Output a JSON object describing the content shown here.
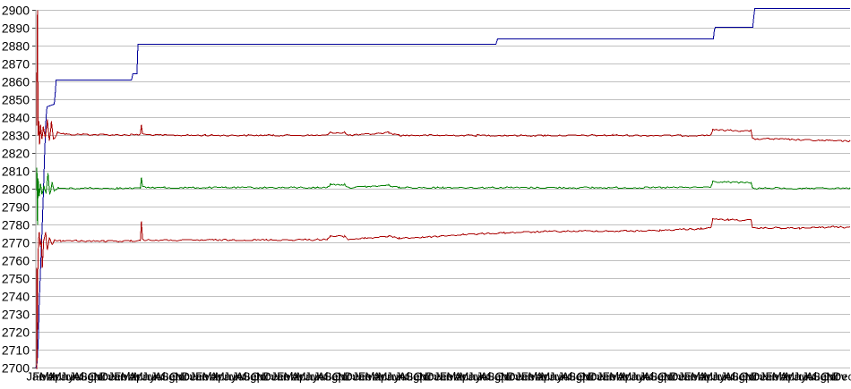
{
  "chart_data": {
    "type": "line",
    "title": "",
    "legend": "none",
    "grid": true,
    "x_axis": {
      "labels_cycle": [
        "Jan",
        "Feb",
        "Mar",
        "Apr",
        "May",
        "Jun",
        "Jul",
        "Aug",
        "Sep",
        "Oct",
        "Nov",
        "Dec"
      ],
      "repeat": 10,
      "count": 120
    },
    "y_axis": {
      "min": 2700,
      "max": 2900,
      "tick_step": 10,
      "tick_labels": [
        "2700",
        "2710",
        "2720",
        "2730",
        "2740",
        "2750",
        "2760",
        "2770",
        "2780",
        "2790",
        "2800",
        "2810",
        "2820",
        "2830",
        "2840",
        "2850",
        "2860",
        "2870",
        "2880",
        "2890",
        "2900"
      ]
    },
    "colors": {
      "grid": "#C0C0C0",
      "axis": "#AAAAAA",
      "tick": "#404040",
      "text": "#000000",
      "background": "#FFFFFF",
      "blue": "#000099",
      "red": "#AA0000",
      "green": "#008000"
    },
    "series": [
      {
        "name": "blue_step",
        "color": "#000099",
        "noise": 0,
        "points": [
          [
            0,
            2700
          ],
          [
            0.2,
            2703
          ],
          [
            0.35,
            2715
          ],
          [
            0.5,
            2736
          ],
          [
            0.7,
            2756
          ],
          [
            0.9,
            2775
          ],
          [
            1.1,
            2796
          ],
          [
            1.3,
            2820
          ],
          [
            1.5,
            2840
          ],
          [
            1.65,
            2846
          ],
          [
            2.7,
            2847.5
          ],
          [
            2.85,
            2853
          ],
          [
            3.0,
            2861
          ],
          [
            14.1,
            2861
          ],
          [
            14.3,
            2864.5
          ],
          [
            14.9,
            2864.5
          ],
          [
            15.05,
            2881
          ],
          [
            67.8,
            2881
          ],
          [
            68.05,
            2884
          ],
          [
            99.85,
            2884
          ],
          [
            100.0,
            2889
          ],
          [
            100.15,
            2890.5
          ],
          [
            105.65,
            2890.5
          ],
          [
            105.8,
            2896
          ],
          [
            105.95,
            2901
          ],
          [
            120,
            2901
          ]
        ]
      },
      {
        "name": "red_upper",
        "color": "#AA0000",
        "noise": 0.9,
        "points": [
          [
            0.12,
            2836
          ],
          [
            0.18,
            2877
          ],
          [
            0.24,
            2900
          ],
          [
            0.3,
            2856
          ],
          [
            0.36,
            2830
          ],
          [
            0.45,
            2838
          ],
          [
            0.55,
            2825
          ],
          [
            0.7,
            2836
          ],
          [
            0.9,
            2828
          ],
          [
            1.1,
            2835
          ],
          [
            1.4,
            2829
          ],
          [
            1.7,
            2839
          ],
          [
            2.0,
            2827
          ],
          [
            2.3,
            2838
          ],
          [
            2.6,
            2828
          ],
          [
            3.2,
            2832
          ],
          [
            4.5,
            2831
          ],
          [
            7,
            2831
          ],
          [
            10,
            2830.8
          ],
          [
            14,
            2830.8
          ],
          [
            15.4,
            2830.8
          ],
          [
            15.55,
            2836
          ],
          [
            15.75,
            2831
          ],
          [
            18,
            2830.6
          ],
          [
            25,
            2830.5
          ],
          [
            35,
            2830.5
          ],
          [
            43,
            2830.5
          ],
          [
            43.4,
            2832
          ],
          [
            45.5,
            2832
          ],
          [
            45.9,
            2830.5
          ],
          [
            48.5,
            2831
          ],
          [
            52,
            2832
          ],
          [
            53.5,
            2830.5
          ],
          [
            58,
            2830.5
          ],
          [
            65,
            2830.5
          ],
          [
            75,
            2830.4
          ],
          [
            85,
            2830.5
          ],
          [
            95,
            2830.4
          ],
          [
            99.5,
            2830.6
          ],
          [
            99.75,
            2833.5
          ],
          [
            102,
            2833.3
          ],
          [
            105.4,
            2833
          ],
          [
            105.6,
            2828.5
          ],
          [
            108,
            2828.5
          ],
          [
            111,
            2828.2
          ],
          [
            114,
            2827.8
          ],
          [
            117,
            2827.5
          ],
          [
            120,
            2827.3
          ]
        ]
      },
      {
        "name": "green_mid",
        "color": "#008000",
        "noise": 0.9,
        "points": [
          [
            0.1,
            2800
          ],
          [
            0.16,
            2812
          ],
          [
            0.24,
            2780
          ],
          [
            0.34,
            2806
          ],
          [
            0.5,
            2796
          ],
          [
            0.7,
            2803
          ],
          [
            0.9,
            2797
          ],
          [
            1.2,
            2802
          ],
          [
            1.5,
            2798
          ],
          [
            1.8,
            2809
          ],
          [
            2.05,
            2797
          ],
          [
            2.4,
            2804
          ],
          [
            2.7,
            2799
          ],
          [
            3.3,
            2801
          ],
          [
            5,
            2800.8
          ],
          [
            8,
            2801
          ],
          [
            12,
            2800.9
          ],
          [
            15.4,
            2800.9
          ],
          [
            15.55,
            2806.5
          ],
          [
            15.75,
            2801.5
          ],
          [
            19,
            2801.2
          ],
          [
            28,
            2801.3
          ],
          [
            38,
            2801.3
          ],
          [
            43,
            2801.3
          ],
          [
            43.4,
            2803
          ],
          [
            45.5,
            2803
          ],
          [
            45.9,
            2801.3
          ],
          [
            48.5,
            2801.8
          ],
          [
            52,
            2802.5
          ],
          [
            53.5,
            2801.3
          ],
          [
            60,
            2801.3
          ],
          [
            70,
            2801.3
          ],
          [
            82,
            2801.2
          ],
          [
            92,
            2801.3
          ],
          [
            99.5,
            2801.5
          ],
          [
            99.75,
            2804.5
          ],
          [
            102,
            2804.3
          ],
          [
            105.4,
            2804
          ],
          [
            105.6,
            2800.8
          ],
          [
            109,
            2801
          ],
          [
            113,
            2800.6
          ],
          [
            116,
            2800.9
          ],
          [
            120,
            2800.8
          ]
        ]
      },
      {
        "name": "red_lower",
        "color": "#AA0000",
        "noise": 0.9,
        "points": [
          [
            0.1,
            2700
          ],
          [
            0.14,
            2756
          ],
          [
            0.2,
            2704
          ],
          [
            0.3,
            2758
          ],
          [
            0.4,
            2772
          ],
          [
            0.5,
            2776
          ],
          [
            0.65,
            2768
          ],
          [
            0.8,
            2772
          ],
          [
            0.95,
            2756
          ],
          [
            1.15,
            2771
          ],
          [
            1.45,
            2776
          ],
          [
            1.7,
            2766
          ],
          [
            2.0,
            2773
          ],
          [
            2.4,
            2769
          ],
          [
            2.8,
            2772
          ],
          [
            3.6,
            2771.5
          ],
          [
            6,
            2771.5
          ],
          [
            10,
            2771.3
          ],
          [
            14,
            2771.5
          ],
          [
            15.4,
            2771.5
          ],
          [
            15.55,
            2782
          ],
          [
            15.75,
            2772
          ],
          [
            19,
            2771.8
          ],
          [
            26,
            2772
          ],
          [
            34,
            2772
          ],
          [
            43,
            2772.3
          ],
          [
            43.4,
            2774
          ],
          [
            45.5,
            2774
          ],
          [
            45.9,
            2772.3
          ],
          [
            48.5,
            2773
          ],
          [
            52,
            2774
          ],
          [
            53.5,
            2773
          ],
          [
            57,
            2773.5
          ],
          [
            63,
            2775
          ],
          [
            69,
            2776
          ],
          [
            75,
            2776.7
          ],
          [
            81,
            2777
          ],
          [
            87,
            2777
          ],
          [
            92,
            2777.3
          ],
          [
            95.5,
            2778
          ],
          [
            98,
            2778.3
          ],
          [
            99.5,
            2778.6
          ],
          [
            99.75,
            2783.5
          ],
          [
            102,
            2783.3
          ],
          [
            105.4,
            2783
          ],
          [
            105.6,
            2778.5
          ],
          [
            109,
            2778.8
          ],
          [
            112.5,
            2778.5
          ],
          [
            115.5,
            2779
          ],
          [
            117.5,
            2779.3
          ],
          [
            120,
            2779
          ]
        ]
      }
    ]
  }
}
